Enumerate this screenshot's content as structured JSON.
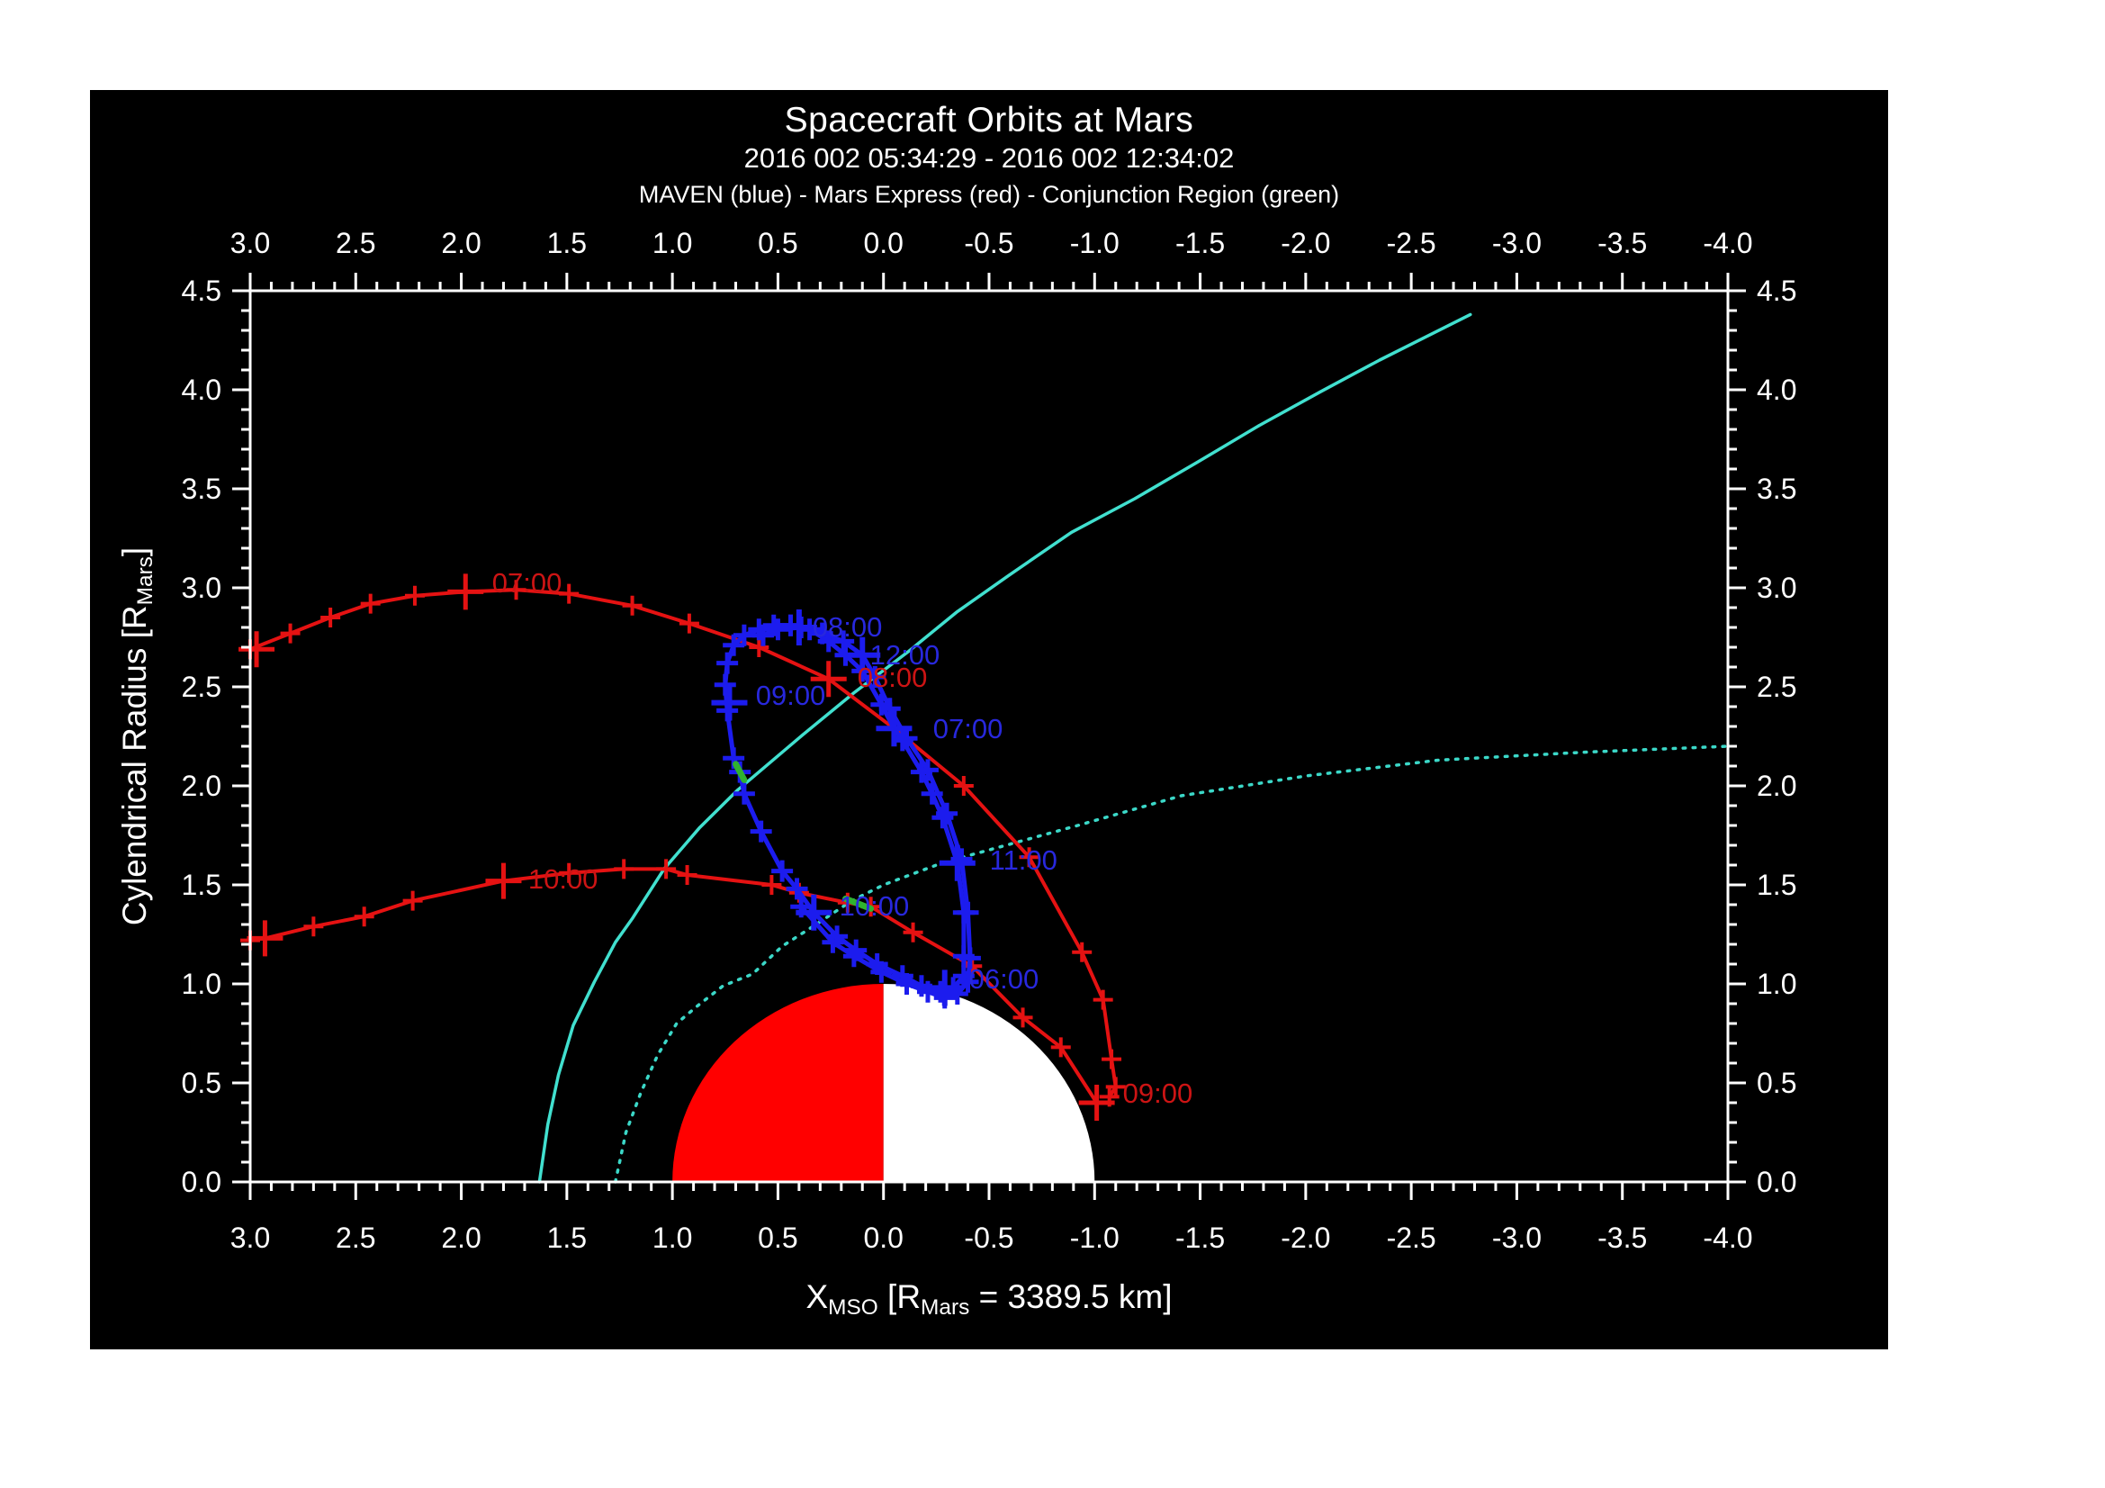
{
  "header": {
    "title": "Spacecraft Orbits at Mars",
    "subtitle": "2016 002 05:34:29 - 2016 002 12:34:02",
    "legend": "MAVEN (blue) - Mars Express (red) - Conjunction Region (green)"
  },
  "axis_labels": {
    "x_parts": [
      {
        "t": "X"
      },
      {
        "t": "MSO"
      },
      {
        "t": " [R"
      },
      {
        "t": "Mars"
      },
      {
        "t": " = 3389.5 km]"
      }
    ],
    "y_parts": [
      {
        "t": "Cylendrical Radius [R"
      },
      {
        "t": "Mars"
      },
      {
        "t": "]"
      }
    ]
  },
  "colors": {
    "page_bg": "#ffffff",
    "plot_bg": "#000000",
    "axis": "#ffffff",
    "maven_blue": "#1c1cee",
    "maven_label_blue": "#2828dd",
    "mex_red": "#e51212",
    "mex_label_red": "#cc1414",
    "bowshock_cyan": "#41e0cf",
    "mpb_cyan": "#3bd8c8",
    "conjunction_green": "#2fb32f",
    "mars_dayside": "#ff0000",
    "mars_nightside": "#ffffff"
  },
  "chart_data": {
    "type": "line",
    "title": "Spacecraft Orbits at Mars",
    "time_range": "2016 002 05:34:29 - 2016 002 12:34:02",
    "xlabel": "X_MSO [R_Mars = 3389.5 km]",
    "ylabel": "Cylendrical Radius [R_Mars]",
    "xlim": [
      3.0,
      -4.0
    ],
    "ylim": [
      0.0,
      4.5
    ],
    "x_axis_reversed": true,
    "grid": false,
    "x_major_ticks": [
      3.0,
      2.5,
      2.0,
      1.5,
      1.0,
      0.5,
      0.0,
      -0.5,
      -1.0,
      -1.5,
      -2.0,
      -2.5,
      -3.0,
      -3.5,
      -4.0
    ],
    "x_tick_labels": [
      "3.0",
      "2.5",
      "2.0",
      "1.5",
      "1.0",
      "0.5",
      "0.0",
      "-0.5",
      "-1.0",
      "-1.5",
      "-2.0",
      "-2.5",
      "-3.0",
      "-3.5",
      "-4.0"
    ],
    "y_major_ticks": [
      0.0,
      0.5,
      1.0,
      1.5,
      2.0,
      2.5,
      3.0,
      3.5,
      4.0,
      4.5
    ],
    "y_tick_labels": [
      "0.0",
      "0.5",
      "1.0",
      "1.5",
      "2.0",
      "2.5",
      "3.0",
      "3.5",
      "4.0",
      "4.5"
    ],
    "minor_tick_step": 0.1,
    "mars_disk": {
      "center_x": 0.0,
      "center_r": 0.0,
      "radius": 1.0,
      "left_half": "red (sunward +X hemisphere)",
      "right_half": "white (anti-sunward hemisphere)"
    },
    "series": [
      {
        "name": "mpb-boundary-dotted",
        "legend": "boundary model (cyan dotted)",
        "color_key": "mpb_cyan",
        "width": 3.5,
        "dash": true,
        "markers": false,
        "paths": [
          [
            [
              1.27,
              0.0
            ],
            [
              1.22,
              0.25
            ],
            [
              1.15,
              0.45
            ],
            [
              1.07,
              0.64
            ],
            [
              0.98,
              0.8
            ],
            [
              0.88,
              0.89
            ],
            [
              0.76,
              0.99
            ],
            [
              0.62,
              1.05
            ],
            [
              0.48,
              1.19
            ],
            [
              0.32,
              1.3
            ],
            [
              0.15,
              1.42
            ],
            [
              0.0,
              1.5
            ],
            [
              -0.25,
              1.6
            ],
            [
              -0.41,
              1.65
            ],
            [
              -0.92,
              1.8
            ],
            [
              -1.41,
              1.95
            ],
            [
              -2.0,
              2.05
            ],
            [
              -2.63,
              2.13
            ],
            [
              -3.32,
              2.17
            ],
            [
              -4.0,
              2.2
            ]
          ]
        ]
      },
      {
        "name": "bow-shock-solid",
        "legend": "boundary model (cyan solid)",
        "color_key": "bowshock_cyan",
        "width": 3.5,
        "dash": false,
        "markers": false,
        "paths": [
          [
            [
              1.63,
              0.0
            ],
            [
              1.59,
              0.29
            ],
            [
              1.54,
              0.54
            ],
            [
              1.47,
              0.79
            ],
            [
              1.37,
              1.01
            ],
            [
              1.27,
              1.21
            ],
            [
              1.19,
              1.33
            ],
            [
              1.04,
              1.58
            ],
            [
              0.87,
              1.79
            ],
            [
              0.69,
              1.98
            ],
            [
              0.38,
              2.26
            ],
            [
              0.14,
              2.47
            ],
            [
              -0.12,
              2.68
            ],
            [
              -0.35,
              2.88
            ],
            [
              -0.59,
              3.06
            ],
            [
              -0.89,
              3.28
            ],
            [
              -1.19,
              3.45
            ],
            [
              -1.48,
              3.63
            ],
            [
              -1.78,
              3.82
            ],
            [
              -2.07,
              3.99
            ],
            [
              -2.35,
              4.15
            ],
            [
              -2.78,
              4.38
            ]
          ]
        ]
      },
      {
        "name": "mars-express-track",
        "legend": "Mars Express (red)",
        "color_key": "mex_red",
        "width": 4,
        "dash": false,
        "markers": true,
        "marker_half": 11,
        "paths": [
          [
            [
              3.0,
              2.69
            ],
            [
              2.81,
              2.77
            ],
            [
              2.62,
              2.85
            ],
            [
              2.43,
              2.92
            ],
            [
              2.22,
              2.96
            ],
            [
              1.98,
              2.98
            ],
            [
              1.74,
              2.99
            ],
            [
              1.49,
              2.97
            ],
            [
              1.19,
              2.91
            ],
            [
              0.92,
              2.82
            ],
            [
              0.59,
              2.7
            ],
            [
              0.26,
              2.54
            ],
            [
              -0.05,
              2.29
            ],
            [
              -0.38,
              2.0
            ],
            [
              -0.69,
              1.64
            ],
            [
              -0.94,
              1.16
            ],
            [
              -1.04,
              0.92
            ],
            [
              -1.08,
              0.62
            ],
            [
              -1.1,
              0.48
            ],
            [
              -1.07,
              0.43
            ]
          ],
          [
            [
              -1.01,
              0.4
            ],
            [
              -0.84,
              0.68
            ],
            [
              -0.66,
              0.83
            ],
            [
              -0.42,
              1.09
            ],
            [
              -0.14,
              1.26
            ],
            [
              0.06,
              1.39
            ],
            [
              0.17,
              1.41
            ],
            [
              0.4,
              1.46
            ],
            [
              0.53,
              1.5
            ],
            [
              0.93,
              1.55
            ],
            [
              1.03,
              1.58
            ],
            [
              1.23,
              1.58
            ],
            [
              1.49,
              1.56
            ],
            [
              1.8,
              1.52
            ],
            [
              2.23,
              1.42
            ],
            [
              2.46,
              1.34
            ],
            [
              2.7,
              1.29
            ],
            [
              2.93,
              1.23
            ],
            [
              3.0,
              1.22
            ]
          ]
        ],
        "big_markers": [
          [
            2.97,
            2.69
          ],
          [
            1.98,
            2.98
          ],
          [
            0.26,
            2.54
          ],
          [
            -1.01,
            0.4
          ],
          [
            1.8,
            1.52
          ],
          [
            2.93,
            1.23
          ]
        ],
        "time_labels": [
          {
            "text": "07:00",
            "x": 1.914,
            "r": 3.023
          },
          {
            "text": "08:00",
            "x": 0.183,
            "r": 2.545
          },
          {
            "text": "09:00",
            "x": -1.074,
            "r": 0.445
          },
          {
            "text": "10:00",
            "x": 1.743,
            "r": 1.527
          }
        ]
      },
      {
        "name": "maven-track",
        "legend": "MAVEN (blue)",
        "color_key": "maven_blue",
        "width": 5,
        "dash": false,
        "markers": true,
        "marker_half": 12,
        "paths": [
          [
            [
              0.44,
              2.81
            ],
            [
              0.52,
              2.81
            ],
            [
              0.59,
              2.79
            ],
            [
              0.66,
              2.76
            ],
            [
              0.71,
              2.71
            ],
            [
              0.74,
              2.62
            ],
            [
              0.75,
              2.51
            ],
            [
              0.74,
              2.38
            ],
            [
              0.71,
              2.14
            ],
            [
              0.68,
              2.07
            ],
            [
              0.66,
              1.96
            ],
            [
              0.58,
              1.77
            ],
            [
              0.48,
              1.57
            ],
            [
              0.41,
              1.48
            ],
            [
              0.33,
              1.36
            ],
            [
              0.22,
              1.24
            ],
            [
              0.13,
              1.17
            ],
            [
              0.03,
              1.1
            ],
            [
              -0.09,
              1.04
            ],
            [
              -0.18,
              0.99
            ],
            [
              -0.27,
              0.96
            ],
            [
              -0.33,
              0.98
            ],
            [
              -0.38,
              1.04
            ],
            [
              -0.38,
              1.14
            ],
            [
              -0.38,
              1.36
            ],
            [
              -0.35,
              1.61
            ],
            [
              -0.28,
              1.84
            ],
            [
              -0.23,
              1.96
            ],
            [
              -0.18,
              2.07
            ],
            [
              -0.09,
              2.23
            ],
            [
              -0.05,
              2.29
            ],
            [
              0.01,
              2.41
            ],
            [
              0.1,
              2.58
            ],
            [
              0.18,
              2.66
            ],
            [
              0.26,
              2.73
            ],
            [
              0.35,
              2.79
            ],
            [
              0.44,
              2.81
            ]
          ],
          [
            [
              0.39,
              1.39
            ],
            [
              0.24,
              1.21
            ],
            [
              0.14,
              1.14
            ],
            [
              0.01,
              1.06
            ],
            [
              -0.11,
              1.0
            ],
            [
              -0.21,
              0.96
            ],
            [
              -0.29,
              0.93
            ],
            [
              -0.35,
              0.95
            ],
            [
              -0.4,
              1.01
            ],
            [
              -0.41,
              1.13
            ],
            [
              -0.4,
              1.36
            ],
            [
              -0.37,
              1.63
            ],
            [
              -0.3,
              1.86
            ],
            [
              -0.21,
              2.08
            ],
            [
              -0.11,
              2.24
            ],
            [
              -0.03,
              2.39
            ],
            [
              0.04,
              2.55
            ],
            [
              0.1,
              2.66
            ],
            [
              0.19,
              2.73
            ],
            [
              0.29,
              2.77
            ],
            [
              0.39,
              2.8
            ],
            [
              0.5,
              2.79
            ],
            [
              0.57,
              2.76
            ]
          ]
        ],
        "big_markers": [
          [
            -0.29,
            0.98
          ],
          [
            -0.05,
            2.29
          ],
          [
            0.4,
            2.8
          ],
          [
            0.73,
            2.42
          ],
          [
            0.33,
            1.36
          ],
          [
            -0.35,
            1.61
          ],
          [
            0.1,
            2.66
          ]
        ],
        "time_labels": [
          {
            "text": "06:00",
            "x": -0.345,
            "r": 1.023
          },
          {
            "text": "07:00",
            "x": -0.175,
            "r": 2.286
          },
          {
            "text": "08:00",
            "x": 0.396,
            "r": 2.8
          },
          {
            "text": "09:00",
            "x": 0.665,
            "r": 2.455
          },
          {
            "text": "10:00",
            "x": 0.269,
            "r": 1.391
          },
          {
            "text": "11:00",
            "x": -0.443,
            "r": 1.623
          },
          {
            "text": "12:00",
            "x": 0.124,
            "r": 2.659
          }
        ]
      },
      {
        "name": "conjunction-region",
        "legend": "Conjunction Region (green)",
        "color_key": "conjunction_green",
        "width": 7,
        "dash": false,
        "markers": false,
        "paths": [
          [
            [
              0.7,
              2.11
            ],
            [
              0.66,
              2.03
            ]
          ],
          [
            [
              0.18,
              1.43
            ],
            [
              0.06,
              1.38
            ]
          ]
        ]
      }
    ]
  }
}
